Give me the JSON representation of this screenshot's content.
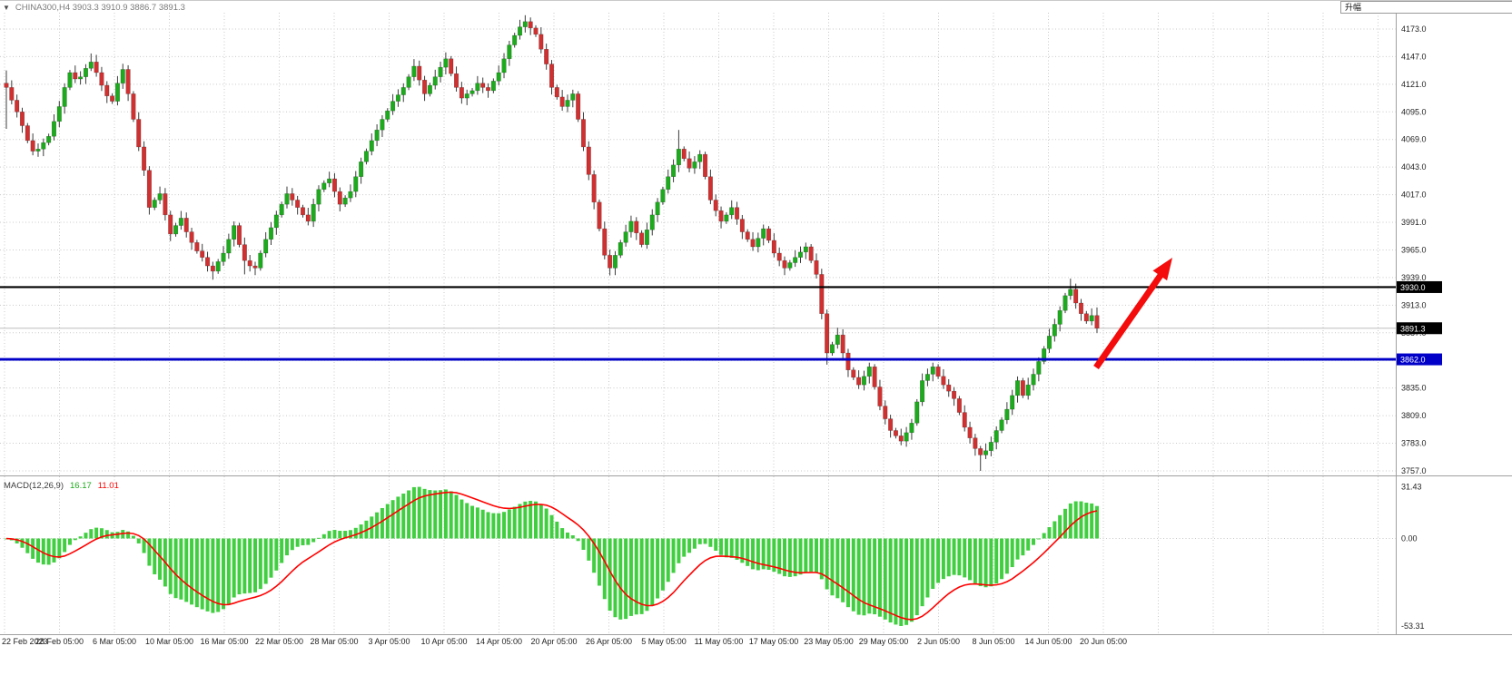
{
  "window": {
    "overlay_label": "升幅"
  },
  "header": {
    "dropdown_icon": "▼",
    "symbol_ohlc": "CHINA300,H4 3903.3 3910.9 3886.7 3891.3"
  },
  "palette": {
    "bull": "#1cab1c",
    "bear": "#d03030",
    "wick": "#3c3c3c",
    "grid": "#c9c9c9",
    "hist": "#41cf41",
    "signal": "#ff0000",
    "black_line": "#000000",
    "blue_line": "#0000c8",
    "axis_text": "#1f1f1f",
    "arrow": "#f40b0b",
    "badge_black": "#000000",
    "badge_blue": "#0000c8"
  },
  "chart_data": [
    {
      "type": "candlestick",
      "title": "CHINA300,H4",
      "symbol": "CHINA300",
      "timeframe": "H4",
      "ohlc_display": {
        "open": 3903.3,
        "high": 3910.9,
        "low": 3886.7,
        "close": 3891.3
      },
      "ylim": [
        3744,
        4192
      ],
      "y_ticks": [
        4173,
        4147,
        4121,
        4095,
        4069,
        4043,
        4017,
        3991,
        3965,
        3939,
        3913,
        3887,
        3861,
        3835,
        3809,
        3783,
        3757
      ],
      "x_labels": [
        "22 Feb 2023",
        "28 Feb 05:00",
        "6 Mar 05:00",
        "10 Mar 05:00",
        "16 Mar 05:00",
        "22 Mar 05:00",
        "28 Mar 05:00",
        "3 Apr 05:00",
        "10 Apr 05:00",
        "14 Apr 05:00",
        "20 Apr 05:00",
        "26 Apr 05:00",
        "5 May 05:00",
        "11 May 05:00",
        "17 May 05:00",
        "23 May 05:00",
        "29 May 05:00",
        "2 Jun 05:00",
        "8 Jun 05:00",
        "14 Jun 05:00",
        "20 Jun 05:00"
      ],
      "closes": [
        4118,
        4106,
        4095,
        4082,
        4068,
        4058,
        4060,
        4066,
        4072,
        4086,
        4100,
        4118,
        4132,
        4126,
        4128,
        4136,
        4142,
        4132,
        4120,
        4110,
        4105,
        4122,
        4135,
        4112,
        4088,
        4062,
        4040,
        4005,
        4012,
        4018,
        3998,
        3980,
        3988,
        3995,
        3982,
        3972,
        3964,
        3958,
        3950,
        3945,
        3954,
        3962,
        3975,
        3988,
        3970,
        3955,
        3950,
        3948,
        3962,
        3975,
        3986,
        3998,
        4008,
        4018,
        4012,
        4005,
        3998,
        3992,
        4008,
        4022,
        4028,
        4032,
        4020,
        4008,
        4014,
        4020,
        4034,
        4048,
        4058,
        4068,
        4078,
        4088,
        4096,
        4105,
        4111,
        4118,
        4128,
        4138,
        4125,
        4112,
        4120,
        4128,
        4137,
        4145,
        4131,
        4118,
        4108,
        4112,
        4115,
        4122,
        4118,
        4115,
        4124,
        4132,
        4145,
        4158,
        4167,
        4175,
        4180,
        4174,
        4168,
        4154,
        4140,
        4118,
        4109,
        4100,
        4106,
        4112,
        4088,
        4062,
        4036,
        4010,
        3985,
        3960,
        3948,
        3960,
        3972,
        3982,
        3992,
        3981,
        3970,
        3984,
        3998,
        4010,
        4022,
        4034,
        4045,
        4060,
        4051,
        4042,
        4048,
        4055,
        4034,
        4012,
        4002,
        3992,
        3998,
        4005,
        3994,
        3982,
        3975,
        3968,
        3976,
        3985,
        3974,
        3962,
        3955,
        3948,
        3953,
        3958,
        3963,
        3968,
        3955,
        3942,
        3905,
        3868,
        3876,
        3885,
        3868,
        3852,
        3845,
        3838,
        3846,
        3855,
        3836,
        3818,
        3806,
        3795,
        3790,
        3785,
        3793,
        3802,
        3822,
        3842,
        3848,
        3855,
        3846,
        3838,
        3832,
        3825,
        3812,
        3798,
        3788,
        3778,
        3772,
        3776,
        3784,
        3795,
        3805,
        3815,
        3828,
        3842,
        3828,
        3838,
        3848,
        3860,
        3872,
        3884,
        3895,
        3908,
        3922,
        3928,
        3915,
        3905,
        3898,
        3903.3,
        3891.3
      ],
      "wick_overrides": {
        "0": {
          "high": 4134,
          "low": 4079
        },
        "16": {
          "high": 4150
        },
        "39": {
          "low": 3937
        },
        "45": {
          "low": 3942
        },
        "83": {
          "high": 4151
        },
        "98": {
          "high": 4186
        },
        "114": {
          "low": 3941
        },
        "127": {
          "high": 4078
        },
        "155": {
          "low": 3857
        },
        "184": {
          "low": 3757
        },
        "201": {
          "high": 3938
        },
        "206": {
          "high": 3910.9,
          "low": 3886.7
        }
      },
      "hlines": [
        {
          "value": 3930.0,
          "label": "3930.0",
          "color_key": "black_line",
          "name": "resistance-line-black"
        },
        {
          "value": 3862.0,
          "label": "3862.0",
          "color_key": "blue_line",
          "name": "support-line-blue"
        }
      ],
      "price_badge": {
        "value": 3891.3,
        "label": "3891.3"
      },
      "annotation_arrow": {
        "description": "red up-right arrow",
        "from_price": 3868,
        "to_price": 3952
      }
    },
    {
      "type": "bar",
      "name": "MACD",
      "label": "MACD(12,26,9)",
      "title": "MACD(12,26,9) 16.17 11.01",
      "params": [
        12,
        26,
        9
      ],
      "display_values": [
        "16.17",
        "11.01"
      ],
      "y_ticks": [
        31.43,
        0,
        -53.31
      ],
      "ylim": [
        -53.31,
        31.43
      ],
      "derived_from": "closes (histogram = EMA12-EMA26, signal = EMA9 of histogram)"
    }
  ]
}
